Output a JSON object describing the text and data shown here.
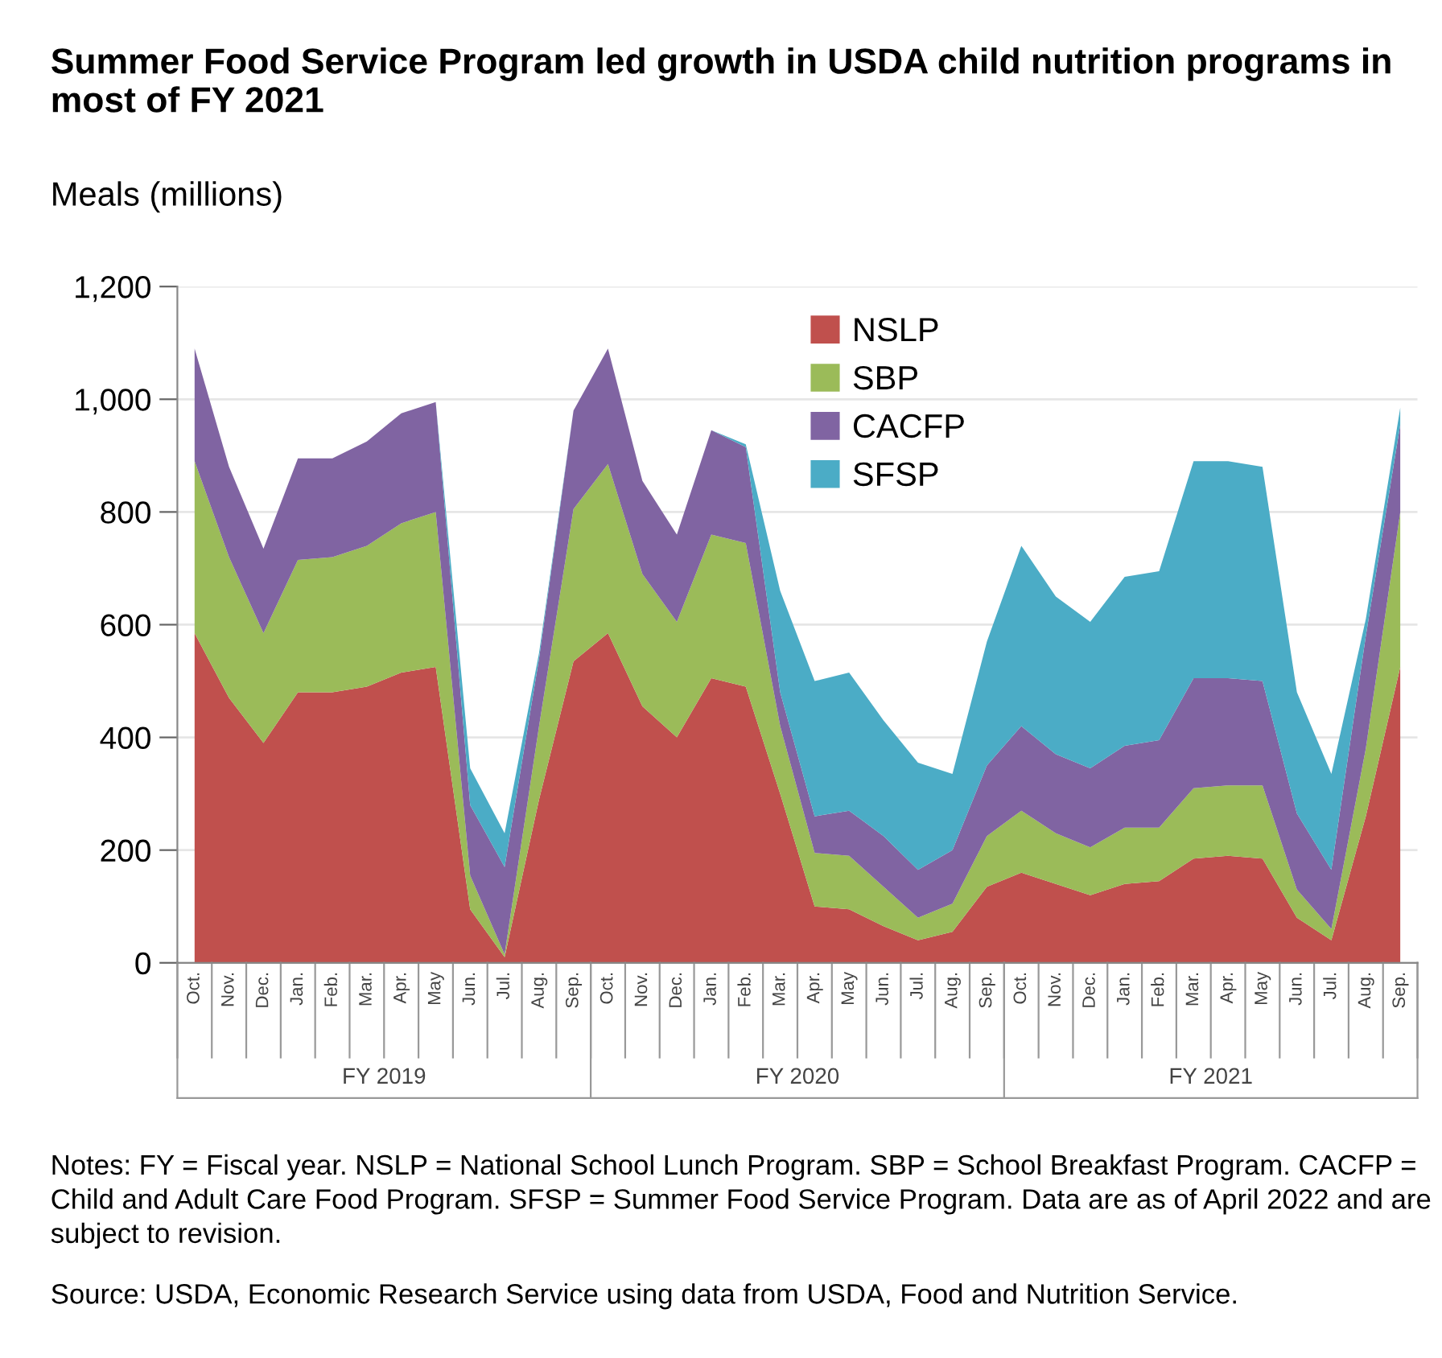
{
  "chart_data": {
    "type": "area",
    "stacked": true,
    "title": "Summer Food Service Program led growth in USDA child nutrition programs in most of FY 2021",
    "ylabel": "Meals (millions)",
    "categories": [
      "Oct.",
      "Nov.",
      "Dec.",
      "Jan.",
      "Feb.",
      "Mar.",
      "Apr.",
      "May",
      "Jun.",
      "Jul.",
      "Aug.",
      "Sep.",
      "Oct.",
      "Nov.",
      "Dec.",
      "Jan.",
      "Feb.",
      "Mar.",
      "Apr.",
      "May",
      "Jun.",
      "Jul.",
      "Aug.",
      "Sep.",
      "Oct.",
      "Nov.",
      "Dec.",
      "Jan.",
      "Feb.",
      "Mar.",
      "Apr.",
      "May",
      "Jun.",
      "Jul.",
      "Aug.",
      "Sep."
    ],
    "series": [
      {
        "name": "NSLP",
        "color": "#c0504d",
        "values": [
          585,
          470,
          390,
          480,
          480,
          490,
          515,
          525,
          95,
          10,
          290,
          535,
          585,
          455,
          400,
          505,
          490,
          300,
          100,
          95,
          65,
          40,
          55,
          135,
          160,
          140,
          120,
          140,
          145,
          185,
          190,
          185,
          80,
          40,
          260,
          525
        ]
      },
      {
        "name": "SBP",
        "color": "#9bbb59",
        "values": [
          305,
          250,
          195,
          235,
          240,
          250,
          265,
          275,
          60,
          5,
          130,
          270,
          300,
          235,
          205,
          255,
          255,
          120,
          95,
          95,
          70,
          40,
          50,
          90,
          110,
          90,
          85,
          100,
          95,
          125,
          125,
          130,
          50,
          20,
          120,
          275
        ]
      },
      {
        "name": "CACFP",
        "color": "#8064a2",
        "values": [
          200,
          160,
          150,
          180,
          175,
          185,
          195,
          195,
          125,
          155,
          120,
          175,
          205,
          165,
          155,
          185,
          170,
          60,
          65,
          80,
          90,
          85,
          95,
          125,
          150,
          140,
          140,
          145,
          155,
          195,
          190,
          185,
          135,
          105,
          200,
          155
        ]
      },
      {
        "name": "SFSP",
        "color": "#4bacc6",
        "values": [
          0,
          0,
          0,
          0,
          0,
          0,
          0,
          0,
          65,
          60,
          10,
          0,
          0,
          0,
          0,
          0,
          5,
          180,
          240,
          245,
          205,
          190,
          135,
          220,
          320,
          280,
          260,
          300,
          300,
          385,
          385,
          380,
          215,
          170,
          30,
          30
        ]
      }
    ],
    "ylim": [
      0,
      1200
    ],
    "yticks": [
      0,
      200,
      400,
      600,
      800,
      {
        "value": 1000,
        "label": "1,000"
      },
      {
        "value": 1200,
        "label": "1,200"
      }
    ],
    "grid": "y",
    "legend": "top right",
    "annotations": [
      "FY 2019",
      "FY 2020",
      "FY 2021",
      "Notes: FY = Fiscal year. NSLP = National School Lunch Program. SBP = School Breakfast Program. CACFP = Child and Adult Care Food Program. SFSP = Summer Food Service Program. Data are as of April 2022 and are subject to revision.",
      "Source: USDA, Economic Research Service using data from USDA, Food and Nutrition Service."
    ]
  }
}
